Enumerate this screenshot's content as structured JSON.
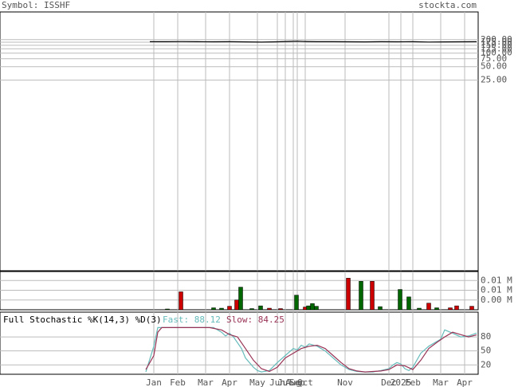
{
  "header": {
    "symbol": "Symbol: ISSHF",
    "site": "stockta.com"
  },
  "chart_data": [
    {
      "type": "line",
      "log_scale": true,
      "xlim": [
        -3,
        81
      ],
      "ylim": [
        0.0014,
        830
      ],
      "yticks": [
        {
          "value": 200,
          "label": "200.00"
        },
        {
          "value": 175,
          "label": "175.00"
        },
        {
          "value": 150,
          "label": "150.00"
        },
        {
          "value": 125,
          "label": "125.00"
        },
        {
          "value": 100,
          "label": "100.00"
        },
        {
          "value": 75,
          "label": "75.00"
        },
        {
          "value": 50,
          "label": "50.00"
        },
        {
          "value": 25,
          "label": "25.00"
        }
      ],
      "series": [
        {
          "color": "#000000",
          "x": [
            -1,
            3,
            7,
            11,
            15,
            19,
            23,
            27,
            31,
            34,
            36,
            38,
            41,
            45,
            49,
            53,
            57,
            61,
            65,
            69,
            73,
            77,
            81
          ],
          "values": [
            180,
            180,
            181,
            180,
            179,
            180,
            178,
            176,
            179,
            183,
            185,
            182,
            180,
            180,
            179,
            178,
            180,
            179,
            180,
            177,
            178,
            179,
            180
          ]
        }
      ]
    },
    {
      "type": "bar",
      "xlim": [
        -3,
        81
      ],
      "ylim": [
        0,
        9800
      ],
      "yticks": [
        {
          "value": 7500,
          "label": "0.01 M"
        },
        {
          "value": 5000,
          "label": "0.01 M"
        },
        {
          "value": 2500,
          "label": "0.00 M"
        }
      ],
      "x": [
        3.4,
        6.8,
        15,
        17,
        19,
        20.8,
        21.8,
        24.6,
        26.8,
        29,
        31.8,
        35.8,
        38,
        38.8,
        39.8,
        40.8,
        48.8,
        52,
        54.8,
        56.8,
        61.8,
        64,
        66.6,
        69,
        71,
        74.4,
        76,
        79.8
      ],
      "values": [
        200,
        4600,
        500,
        400,
        900,
        2500,
        5800,
        300,
        1000,
        400,
        300,
        3750,
        700,
        1000,
        1600,
        900,
        8100,
        7300,
        7300,
        800,
        5200,
        3300,
        400,
        1700,
        500,
        500,
        1000,
        900
      ],
      "colors": [
        "#006600",
        "#cc0000",
        "#006600",
        "#006600",
        "#cc0000",
        "#cc0000",
        "#006600",
        "#006600",
        "#006600",
        "#cc0000",
        "#cc0000",
        "#006600",
        "#cc0000",
        "#006600",
        "#006600",
        "#006600",
        "#cc0000",
        "#006600",
        "#cc0000",
        "#006600",
        "#006600",
        "#006600",
        "#006600",
        "#cc0000",
        "#006600",
        "#cc0000",
        "#cc0000",
        "#cc0000"
      ]
    },
    {
      "type": "line",
      "title": "Full Stochastic %K(14,3) %D(3)",
      "xlim": [
        -3,
        81
      ],
      "ylim": [
        0,
        133
      ],
      "yticks": [
        80,
        50,
        20
      ],
      "xticks": [
        {
          "value": 0,
          "label": "Jan"
        },
        {
          "value": 6,
          "label": "Feb"
        },
        {
          "value": 13,
          "label": "Mar"
        },
        {
          "value": 19,
          "label": "Apr"
        },
        {
          "value": 26,
          "label": "May"
        },
        {
          "value": 31,
          "label": "Jun"
        },
        {
          "value": 33,
          "label": "Jul"
        },
        {
          "value": 35,
          "label": "Aug"
        },
        {
          "value": 36,
          "label": "Sep"
        },
        {
          "value": 38,
          "label": "Oct"
        },
        {
          "value": 48,
          "label": "Nov"
        },
        {
          "value": 59,
          "label": "Dec"
        },
        {
          "value": 62,
          "label": "2025"
        },
        {
          "value": 65,
          "label": "Feb"
        },
        {
          "value": 72,
          "label": "Mar"
        },
        {
          "value": 78,
          "label": "Apr"
        }
      ],
      "series": [
        {
          "name": "Fast: 88.12",
          "color": "#66bbbb",
          "x": [
            -2,
            0,
            1,
            4,
            8,
            12,
            15,
            17,
            18,
            19,
            20,
            22,
            23,
            25,
            26,
            27,
            29,
            31,
            33,
            35,
            36,
            37,
            38,
            39,
            41,
            43,
            45,
            47,
            49,
            51,
            53,
            55,
            57,
            59,
            60,
            61,
            62,
            63,
            64,
            65,
            67,
            69,
            71,
            72,
            73,
            75,
            77,
            79,
            81
          ],
          "values": [
            5,
            60,
            100,
            100,
            100,
            100,
            100,
            90,
            82,
            88,
            80,
            55,
            35,
            15,
            8,
            5,
            8,
            25,
            40,
            55,
            52,
            62,
            58,
            65,
            60,
            50,
            35,
            20,
            10,
            6,
            5,
            5,
            8,
            12,
            20,
            25,
            22,
            12,
            8,
            15,
            45,
            60,
            70,
            75,
            95,
            88,
            80,
            82,
            88.12
          ]
        },
        {
          "name": "Slow: 84.25",
          "color": "#993355",
          "x": [
            -2,
            0,
            1,
            2,
            14,
            17,
            19,
            21,
            23,
            25,
            27,
            29,
            31,
            33,
            35,
            37,
            39,
            41,
            43,
            45,
            47,
            49,
            51,
            53,
            55,
            57,
            59,
            61,
            63,
            65,
            67,
            69,
            71,
            73,
            75,
            77,
            79,
            81
          ],
          "values": [
            10,
            40,
            90,
            100,
            100,
            95,
            85,
            80,
            55,
            30,
            12,
            6,
            15,
            35,
            45,
            55,
            60,
            62,
            55,
            40,
            25,
            12,
            7,
            5,
            6,
            7,
            10,
            20,
            18,
            10,
            30,
            55,
            68,
            80,
            90,
            85,
            80,
            84.25
          ]
        }
      ]
    }
  ]
}
